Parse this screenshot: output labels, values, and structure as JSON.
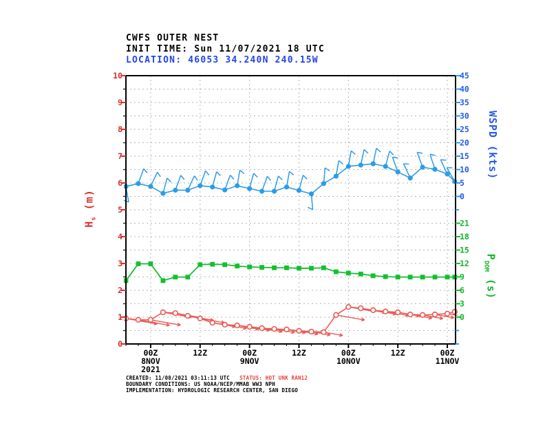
{
  "header": {
    "line1": "CWFS OUTER NEST",
    "line2": "INIT TIME: Sun 11/07/2021 18 UTC",
    "line3": "LOCATION: 46053 34.240N 240.15W"
  },
  "footer": {
    "created": "CREATED: 11/08/2021 03:11:13 UTC",
    "status": "STATUS: HOT UNK RAN12",
    "boundary": "BOUNDARY CONDITIONS: US NOAA/NCEP/MMAB WW3 NPH",
    "implementation": "IMPLEMENTATION: HYDROLOGIC RESEARCH CENTER, SAN DIEGO"
  },
  "colors": {
    "header_blue": "#2244ee",
    "red_axis": "#d62f2f",
    "red_data": "#ea5b55",
    "blue_axis": "#2459ea",
    "blue_data": "#2b9ce8",
    "green_axis": "#16b428",
    "green_data": "#12c02e",
    "grid": "#b5b5b5",
    "frame": "#000000",
    "status_red": "#e8403a"
  },
  "chart_data": {
    "type": "line",
    "title": "CWFS OUTER NEST",
    "grid": "dashed horizontal every 0.5 m-equivalent, vertical every 12 h",
    "x_axis": {
      "unit": "time (UTC)",
      "labels": [
        {
          "t": 6,
          "lines": [
            "00Z",
            "8NOV",
            "2021"
          ]
        },
        {
          "t": 18,
          "lines": [
            "12Z"
          ]
        },
        {
          "t": 30,
          "lines": [
            "00Z",
            "9NOV"
          ]
        },
        {
          "t": 42,
          "lines": [
            "12Z"
          ]
        },
        {
          "t": 54,
          "lines": [
            "00Z",
            "10NOV"
          ]
        },
        {
          "t": 66,
          "lines": [
            "12Z"
          ]
        },
        {
          "t": 78,
          "lines": [
            "00Z",
            "11NOV"
          ]
        }
      ]
    },
    "axes": {
      "hs": {
        "label_main": "H",
        "label_sub": "s",
        "label_rest": " (m)",
        "side": "left",
        "range": [
          0,
          10
        ],
        "ticks": [
          10,
          9,
          8,
          7,
          6,
          5,
          4,
          3,
          2,
          1,
          0
        ]
      },
      "wspd": {
        "label": "WSPD (kts)",
        "side": "right-upper",
        "range": [
          0,
          45
        ],
        "ticks": [
          45,
          40,
          35,
          30,
          25,
          20,
          15,
          10,
          5,
          0
        ]
      },
      "pdom": {
        "label_main": "P",
        "label_sub": "DOM",
        "label_rest": " (s)",
        "side": "right-lower",
        "range": [
          0,
          21
        ],
        "ticks": [
          21,
          18,
          15,
          12,
          9,
          6,
          3,
          0
        ]
      }
    },
    "times_hours_from_init": [
      0,
      3,
      6,
      9,
      12,
      15,
      18,
      21,
      24,
      27,
      30,
      33,
      36,
      39,
      42,
      45,
      48,
      51,
      54,
      57,
      60,
      63,
      66,
      69,
      72,
      75,
      78,
      79.8
    ],
    "series": [
      {
        "id": "wspd",
        "name": "wind-speed",
        "unit": "kts",
        "marker": "dot-with-wind-barb",
        "values": [
          3.1,
          4.2,
          3.1,
          0.5,
          1.7,
          1.7,
          3.4,
          2.9,
          1.8,
          3.4,
          2.3,
          1.3,
          1.3,
          2.9,
          1.6,
          0.3,
          4.2,
          7.0,
          10.7,
          11.2,
          11.7,
          10.7,
          8.6,
          6.3,
          10.4,
          9.6,
          7.8,
          5.0
        ],
        "barb_angles_deg": [
          170,
          20,
          25,
          15,
          20,
          25,
          20,
          15,
          20,
          10,
          15,
          20,
          15,
          10,
          15,
          175,
          5,
          10,
          10,
          12,
          12,
          15,
          -20,
          -25,
          -20,
          -18,
          -25,
          -30
        ]
      },
      {
        "id": "hs",
        "name": "significant-wave-height",
        "unit": "m",
        "marker": "open-circle-with-direction-arrow",
        "values": [
          0.95,
          0.9,
          0.9,
          1.18,
          1.15,
          1.05,
          0.95,
          0.79,
          0.72,
          0.69,
          0.64,
          0.59,
          0.56,
          0.54,
          0.49,
          0.46,
          0.44,
          1.08,
          1.38,
          1.33,
          1.26,
          1.21,
          1.18,
          1.1,
          1.08,
          1.1,
          1.13,
          1.2
        ],
        "arrow_lens": [
          46,
          46,
          44,
          42,
          40,
          38,
          36,
          34,
          32,
          32,
          30,
          30,
          30,
          28,
          28,
          28,
          28,
          42,
          40,
          36,
          34,
          34,
          32,
          32,
          30,
          28,
          26,
          20
        ]
      },
      {
        "id": "pdom",
        "name": "dominant-wave-period",
        "unit": "s",
        "marker": "filled-square",
        "values": [
          8.1,
          11.9,
          11.9,
          8.1,
          8.9,
          8.9,
          11.7,
          11.8,
          11.7,
          11.4,
          11.2,
          11.1,
          11.0,
          11.0,
          10.9,
          10.9,
          11.0,
          10.1,
          9.8,
          9.6,
          9.2,
          9.0,
          8.9,
          8.9,
          8.9,
          8.9,
          8.9,
          8.9
        ]
      }
    ]
  }
}
